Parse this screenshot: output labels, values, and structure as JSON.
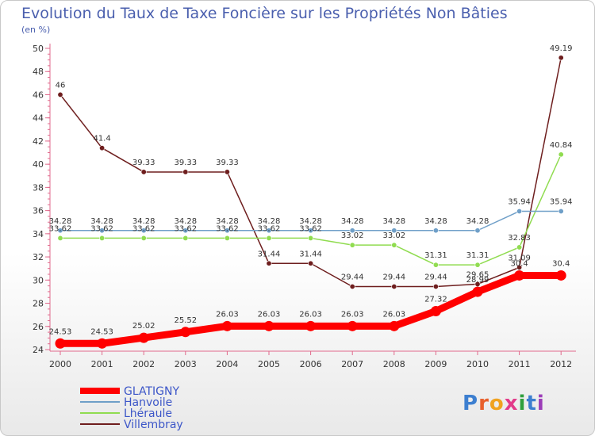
{
  "chart_data": {
    "type": "line",
    "title": "Evolution du Taux de Taxe Foncière sur les Propriétés Non Bâties",
    "subtitle": "(en %)",
    "x": [
      "2000",
      "2001",
      "2002",
      "2003",
      "2004",
      "2005",
      "2006",
      "2007",
      "2008",
      "2009",
      "2010",
      "2011",
      "2012"
    ],
    "ylim": [
      24,
      50
    ],
    "yticks": [
      24,
      26,
      28,
      30,
      32,
      34,
      36,
      38,
      40,
      42,
      44,
      46,
      48,
      50
    ],
    "grid": false,
    "legend_position": "bottom-left",
    "series": [
      {
        "name": "GLATIGNY",
        "color": "#ff0000",
        "values": [
          24.53,
          24.53,
          25.02,
          25.52,
          26.03,
          26.03,
          26.03,
          26.03,
          26.03,
          27.32,
          28.99,
          30.4,
          30.4
        ],
        "labels": [
          "24.53",
          "24.53",
          "25.02",
          "25.52",
          "26.03",
          "26.03",
          "26.03",
          "26.03",
          "26.03",
          "27.32",
          "28.99",
          "30.4",
          "30.4"
        ]
      },
      {
        "name": "Hanvoile",
        "color": "#6f9fc8",
        "values": [
          34.28,
          34.28,
          34.28,
          34.28,
          34.28,
          34.28,
          34.28,
          34.28,
          34.28,
          34.28,
          34.28,
          35.94,
          35.94
        ],
        "labels": [
          "34.28",
          "34.28",
          "34.28",
          "34.28",
          "34.28",
          "34.28",
          "34.28",
          "34.28",
          "34.28",
          "34.28",
          "34.28",
          "35.94",
          "35.94"
        ]
      },
      {
        "name": "Lhéraule",
        "color": "#90dc50",
        "values": [
          33.62,
          33.62,
          33.62,
          33.62,
          33.62,
          33.62,
          33.62,
          33.02,
          33.02,
          31.31,
          31.31,
          32.83,
          40.84
        ],
        "labels": [
          "33.62",
          "33.62",
          "33.62",
          "33.62",
          "33.62",
          "33.62",
          "33.62",
          "33.02",
          "33.02",
          "31.31",
          "31.31",
          "32.83",
          "40.84"
        ]
      },
      {
        "name": "Villembray",
        "color": "#6e1e1e",
        "values": [
          46,
          41.4,
          39.33,
          39.33,
          39.33,
          31.44,
          31.44,
          29.44,
          29.44,
          29.44,
          29.65,
          31.09,
          49.19
        ],
        "labels": [
          "46",
          "41.4",
          "39.33",
          "39.33",
          "39.33",
          "31.44",
          "31.44",
          "29.44",
          "29.44",
          "29.44",
          "29.65",
          "31.09",
          "49.19"
        ]
      }
    ]
  },
  "logo": {
    "text": "Proxiti"
  }
}
